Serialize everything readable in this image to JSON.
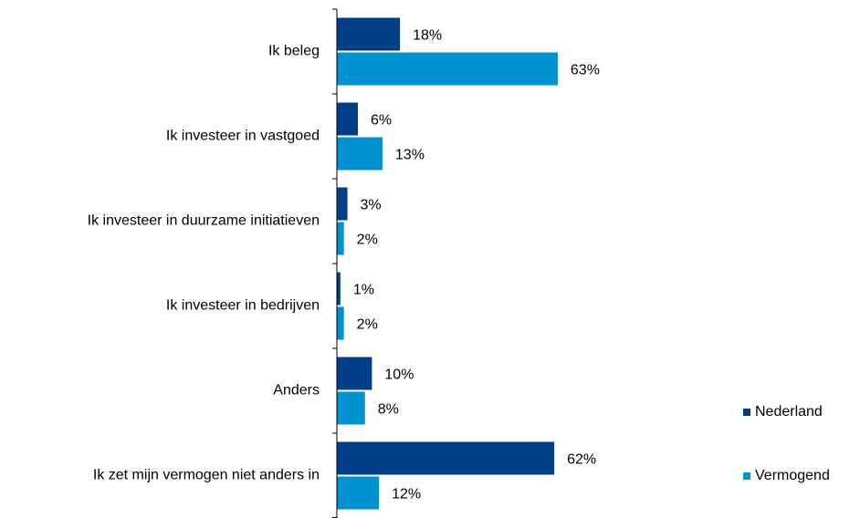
{
  "chart_data": {
    "type": "hbar",
    "categories": [
      "Ik beleg",
      "Ik investeer in vastgoed",
      "Ik investeer in duurzame initiatieven",
      "Ik investeer in bedrijven",
      "Anders",
      "Ik zet mijn vermogen niet anders in"
    ],
    "series": [
      {
        "name": "Nederland",
        "color": "#003f87",
        "values": [
          18,
          6,
          3,
          1,
          10,
          62
        ],
        "value_labels": [
          "18%",
          "6%",
          "3%",
          "1%",
          "10%",
          "62%"
        ]
      },
      {
        "name": "Vermogend",
        "color": "#0091d0",
        "values": [
          63,
          13,
          2,
          2,
          8,
          12
        ],
        "value_labels": [
          "63%",
          "13%",
          "2%",
          "2%",
          "8%",
          "12%"
        ]
      }
    ],
    "xlim": [
      0,
      100
    ],
    "legend": "right"
  }
}
